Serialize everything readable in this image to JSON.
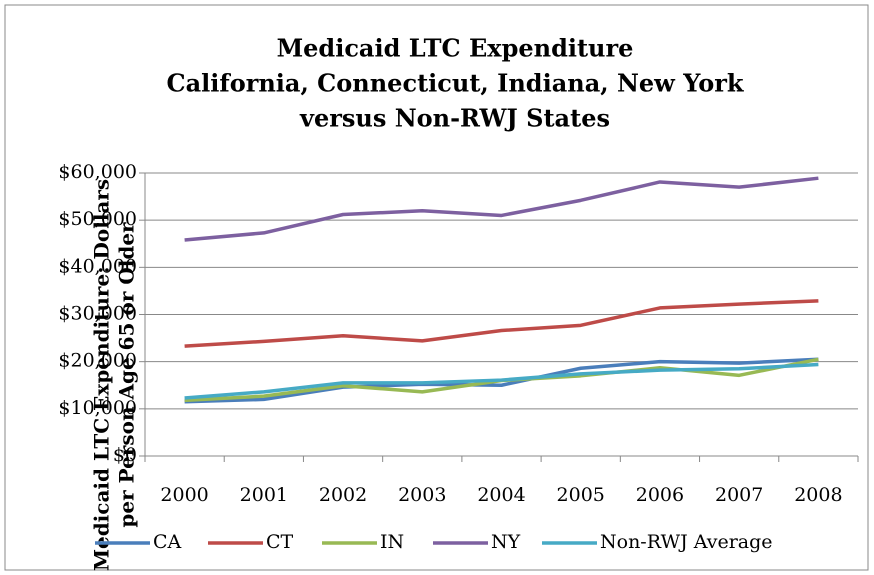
{
  "chart_data": {
    "type": "line",
    "title": [
      "Medicaid LTC Expenditure",
      "California, Connecticut, Indiana, New York",
      "versus Non-RWJ States"
    ],
    "y_label": [
      "Medicaid LTC Expenditure: Dollars",
      "per Person Age 65 or Older"
    ],
    "categories": [
      "2000",
      "2001",
      "2002",
      "2003",
      "2004",
      "2005",
      "2006",
      "2007",
      "2008"
    ],
    "series": [
      {
        "name": "CA",
        "color": "#4a7ebb",
        "values": [
          11500,
          12000,
          14600,
          15200,
          15000,
          18600,
          20000,
          19700,
          20500
        ]
      },
      {
        "name": "CT",
        "color": "#be4b48",
        "values": [
          23300,
          24300,
          25500,
          24400,
          26600,
          27700,
          31400,
          32200,
          32900
        ]
      },
      {
        "name": "IN",
        "color": "#98b954",
        "values": [
          11800,
          12700,
          14900,
          13600,
          16000,
          17000,
          18700,
          17100,
          20500
        ]
      },
      {
        "name": "NY",
        "color": "#7d60a0",
        "values": [
          45800,
          47300,
          51200,
          52000,
          51000,
          54200,
          58100,
          57000,
          58900
        ]
      },
      {
        "name": "Non-RWJ Average",
        "color": "#46aac5",
        "values": [
          12300,
          13600,
          15500,
          15500,
          16100,
          17400,
          18200,
          18500,
          19400
        ]
      }
    ],
    "ylim": [
      0,
      60000
    ],
    "yticks": [
      {
        "value": 0,
        "label": "$0"
      },
      {
        "value": 10000,
        "label": "$10,000"
      },
      {
        "value": 20000,
        "label": "$20,000"
      },
      {
        "value": 30000,
        "label": "$30,000"
      },
      {
        "value": 40000,
        "label": "$40,000"
      },
      {
        "value": 50000,
        "label": "$50,000"
      },
      {
        "value": 60000,
        "label": "$60,000"
      }
    ],
    "grid": true,
    "legend": "bottom"
  }
}
